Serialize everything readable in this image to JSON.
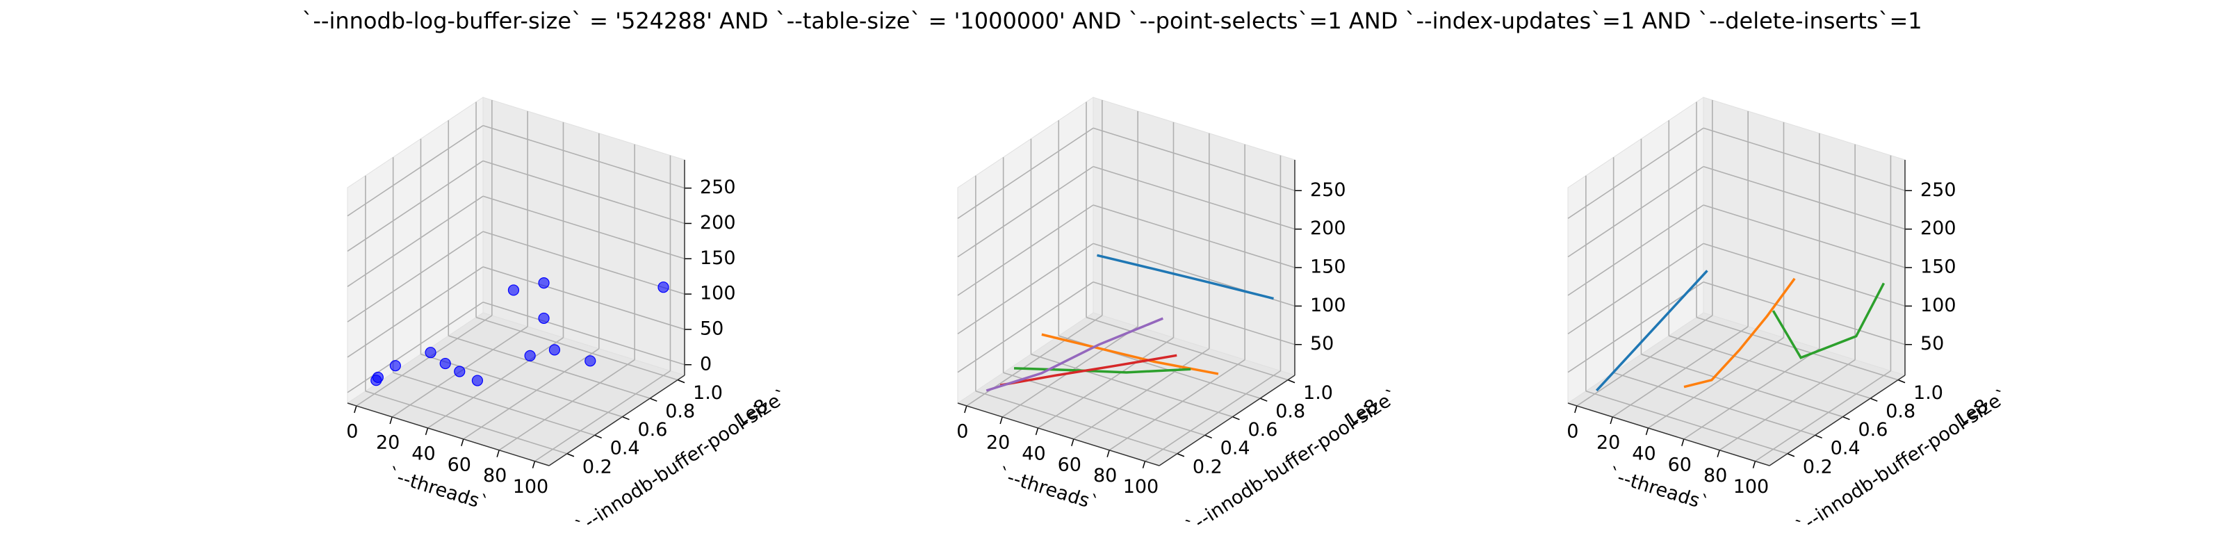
{
  "title": "`--innodb-log-buffer-size` = '524288' AND `--table-size` = '1000000'  AND `--point-selects`=1 AND `--index-updates`=1 AND `--delete-inserts`=1",
  "chart_data": [
    {
      "type": "scatter3d",
      "xlabel": "`--threads`",
      "ylabel": "`--innodb-buffer-pool-size`",
      "y_offset_label": "1e8",
      "xlim": [
        -5,
        108
      ],
      "ylim": [
        0.07,
        1.05
      ],
      "zlim": [
        -15,
        290
      ],
      "xticks": [
        0,
        20,
        40,
        60,
        80,
        100
      ],
      "yticks": [
        0.2,
        0.4,
        0.6,
        0.8,
        {
          "value": 1,
          "label": "1.0"
        }
      ],
      "zticks": [
        0,
        50,
        100,
        150,
        200,
        250
      ],
      "series": [
        {
          "color": "#0000ff",
          "x": [
            1,
            2,
            4,
            16,
            32,
            40,
            50,
            64,
            64,
            64,
            70,
            90,
            100,
            16
          ],
          "y": [
            0.2,
            0.2,
            0.3,
            0.4,
            0.3,
            0.3,
            0.3,
            0.5,
            0.6,
            0.6,
            0.6,
            0.6,
            1.0,
            1.0
          ],
          "z": [
            5,
            10,
            15,
            30,
            40,
            35,
            30,
            50,
            140,
            90,
            50,
            50,
            110,
            40
          ]
        }
      ]
    },
    {
      "type": "line3d",
      "xlabel": "`--threads`",
      "ylabel": "`--innodb-buffer-pool-size`",
      "y_offset_label": "1e8",
      "xlim": [
        -5,
        108
      ],
      "ylim": [
        0.07,
        1.05
      ],
      "zlim": [
        10,
        290
      ],
      "xticks": [
        0,
        20,
        40,
        60,
        80,
        100
      ],
      "yticks": [
        0.2,
        0.4,
        0.6,
        0.8,
        {
          "value": 1,
          "label": "1.0"
        }
      ],
      "zticks": [
        50,
        100,
        150,
        200,
        250
      ],
      "series": [
        {
          "color": "#1f77b4",
          "x": [
            1,
            32,
            64,
            100
          ],
          "y": [
            1,
            1,
            1,
            1
          ],
          "z": [
            95,
            100,
            105,
            110
          ]
        },
        {
          "color": "#ff7f0e",
          "x": [
            1,
            32,
            64,
            100
          ],
          "y": [
            0.6,
            0.6,
            0.6,
            0.6
          ],
          "z": [
            40,
            45,
            50,
            60
          ]
        },
        {
          "color": "#2ca02c",
          "x": [
            1,
            32,
            64,
            100
          ],
          "y": [
            0.4,
            0.4,
            0.4,
            0.4
          ],
          "z": [
            20,
            40,
            60,
            90
          ]
        },
        {
          "color": "#d62728",
          "x": [
            1,
            32,
            64,
            100
          ],
          "y": [
            0.3,
            0.3,
            0.3,
            0.3
          ],
          "z": [
            10,
            45,
            80,
            120
          ]
        },
        {
          "color": "#9467bd",
          "x": [
            1,
            32,
            64,
            100
          ],
          "y": [
            0.2,
            0.2,
            0.2,
            0.2
          ],
          "z": [
            15,
            60,
            120,
            180
          ]
        }
      ]
    },
    {
      "type": "line3d",
      "xlabel": "`--threads`",
      "ylabel": "`--innodb-buffer-pool-size`",
      "y_offset_label": "1e8",
      "xlim": [
        -5,
        108
      ],
      "ylim": [
        0.07,
        1.05
      ],
      "zlim": [
        10,
        290
      ],
      "xticks": [
        0,
        20,
        40,
        60,
        80,
        100
      ],
      "yticks": [
        0.2,
        0.4,
        0.6,
        0.8,
        {
          "value": 1,
          "label": "1.0"
        }
      ],
      "zticks": [
        50,
        100,
        150,
        200,
        250
      ],
      "series": [
        {
          "color": "#1f77b4",
          "x": [
            1,
            1,
            1,
            1,
            1
          ],
          "y": [
            0.2,
            0.4,
            0.6,
            0.8,
            1.0
          ],
          "z": [
            15,
            30,
            45,
            60,
            75
          ]
        },
        {
          "color": "#ff7f0e",
          "x": [
            50,
            50,
            50,
            50,
            50
          ],
          "y": [
            0.2,
            0.4,
            0.6,
            0.8,
            1.0
          ],
          "z": [
            55,
            40,
            55,
            75,
            100
          ]
        },
        {
          "color": "#2ca02c",
          "x": [
            100,
            100,
            100,
            100,
            100
          ],
          "y": [
            0.2,
            0.4,
            0.6,
            0.8,
            1.0
          ],
          "z": [
            190,
            105,
            95,
            85,
            130
          ]
        }
      ]
    }
  ]
}
